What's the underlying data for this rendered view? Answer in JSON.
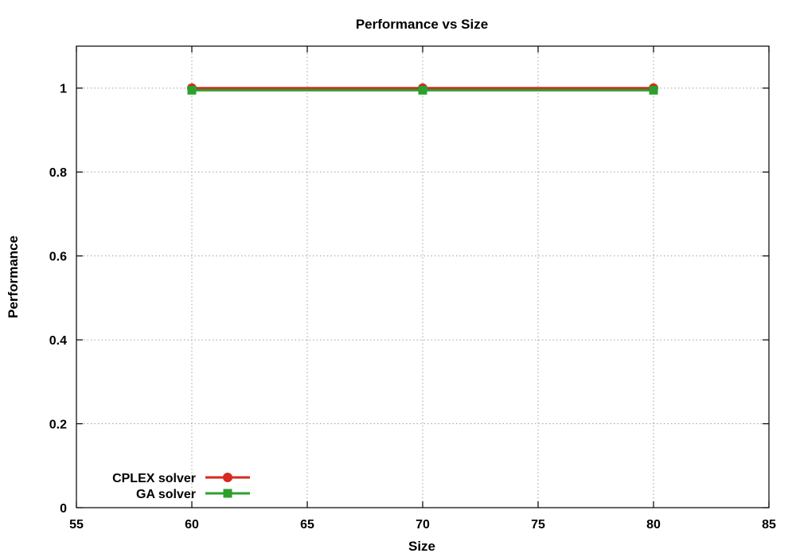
{
  "chart_data": {
    "type": "line",
    "title": "Performance vs Size",
    "xlabel": "Size",
    "ylabel": "Performance",
    "xlim": [
      55,
      85
    ],
    "ylim": [
      0,
      1.1
    ],
    "x_ticks": [
      55,
      60,
      65,
      70,
      75,
      80,
      85
    ],
    "y_ticks": [
      0,
      0.2,
      0.4,
      0.6,
      0.8,
      1
    ],
    "y_tick_labels": [
      "0",
      "0.2",
      "0.4",
      "0.6",
      "0.8",
      "1"
    ],
    "grid": true,
    "legend_position": "bottom-left",
    "series": [
      {
        "name": "CPLEX solver",
        "marker": "circle",
        "color": "#d62a1e",
        "x": [
          60,
          70,
          80
        ],
        "y": [
          1.0,
          1.0,
          1.0
        ]
      },
      {
        "name": "GA solver",
        "marker": "square",
        "color": "#2ca02c",
        "x": [
          60,
          70,
          80
        ],
        "y": [
          0.995,
          0.995,
          0.995
        ]
      }
    ]
  }
}
